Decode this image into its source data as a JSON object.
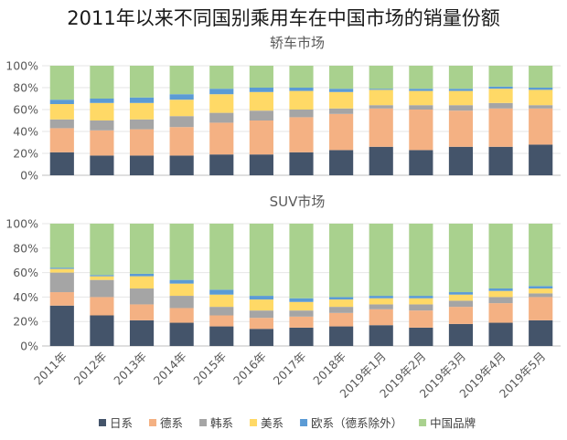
{
  "title": "2011年以来不同国别乘用车在中国市场的销量份额",
  "chart_data": [
    {
      "type": "bar",
      "stacked": true,
      "title": "轿车市场",
      "categories": [
        "2011年",
        "2012年",
        "2013年",
        "2014年",
        "2015年",
        "2016年",
        "2017年",
        "2018年",
        "2019年1月",
        "2019年2月",
        "2019年3月",
        "2019年4月",
        "2019年5月"
      ],
      "ylim": [
        0,
        100
      ],
      "yticks": [
        "0%",
        "20%",
        "40%",
        "60%",
        "80%",
        "100%"
      ],
      "series": [
        {
          "name": "日系",
          "color": "#44546a",
          "values": [
            21,
            18,
            18,
            18,
            19,
            19,
            21,
            23,
            26,
            23,
            26,
            26,
            28
          ]
        },
        {
          "name": "德系",
          "color": "#f4b183",
          "values": [
            22,
            23,
            24,
            26,
            29,
            31,
            32,
            33,
            35,
            37,
            33,
            35,
            33
          ]
        },
        {
          "name": "韩系",
          "color": "#a5a5a5",
          "values": [
            8,
            9,
            9,
            10,
            9,
            9,
            7,
            5,
            3,
            4,
            5,
            5,
            3
          ]
        },
        {
          "name": "美系",
          "color": "#ffd966",
          "values": [
            14,
            16,
            15,
            15,
            17,
            17,
            17,
            15,
            14,
            13,
            13,
            13,
            14
          ]
        },
        {
          "name": "欧系（德系除外）",
          "color": "#5b9bd5",
          "values": [
            4,
            4,
            5,
            5,
            5,
            4,
            3,
            3,
            1,
            2,
            2,
            2,
            2
          ]
        },
        {
          "name": "中国品牌",
          "color": "#a9d18e",
          "values": [
            31,
            30,
            29,
            26,
            21,
            20,
            20,
            21,
            21,
            21,
            21,
            19,
            20
          ]
        }
      ]
    },
    {
      "type": "bar",
      "stacked": true,
      "title": "SUV市场",
      "categories": [
        "2011年",
        "2012年",
        "2013年",
        "2014年",
        "2015年",
        "2016年",
        "2017年",
        "2018年",
        "2019年1月",
        "2019年2月",
        "2019年3月",
        "2019年4月",
        "2019年5月"
      ],
      "ylim": [
        0,
        100
      ],
      "yticks": [
        "0%",
        "20%",
        "40%",
        "60%",
        "80%",
        "100%"
      ],
      "series": [
        {
          "name": "日系",
          "color": "#44546a",
          "values": [
            33,
            25,
            21,
            19,
            16,
            14,
            15,
            16,
            17,
            15,
            18,
            19,
            21
          ]
        },
        {
          "name": "德系",
          "color": "#f4b183",
          "values": [
            11,
            15,
            13,
            12,
            9,
            9,
            9,
            11,
            13,
            14,
            14,
            16,
            19
          ]
        },
        {
          "name": "韩系",
          "color": "#a5a5a5",
          "values": [
            16,
            14,
            13,
            10,
            7,
            6,
            5,
            5,
            4,
            5,
            5,
            5,
            3
          ]
        },
        {
          "name": "美系",
          "color": "#ffd966",
          "values": [
            3,
            3,
            10,
            10,
            10,
            9,
            7,
            6,
            5,
            5,
            5,
            5,
            4
          ]
        },
        {
          "name": "欧系（德系除外）",
          "color": "#5b9bd5",
          "values": [
            1,
            1,
            2,
            3,
            4,
            3,
            3,
            2,
            2,
            2,
            2,
            2,
            2
          ]
        },
        {
          "name": "中国品牌",
          "color": "#a9d18e",
          "values": [
            36,
            42,
            41,
            46,
            54,
            59,
            61,
            60,
            59,
            59,
            56,
            53,
            51
          ]
        }
      ]
    }
  ]
}
